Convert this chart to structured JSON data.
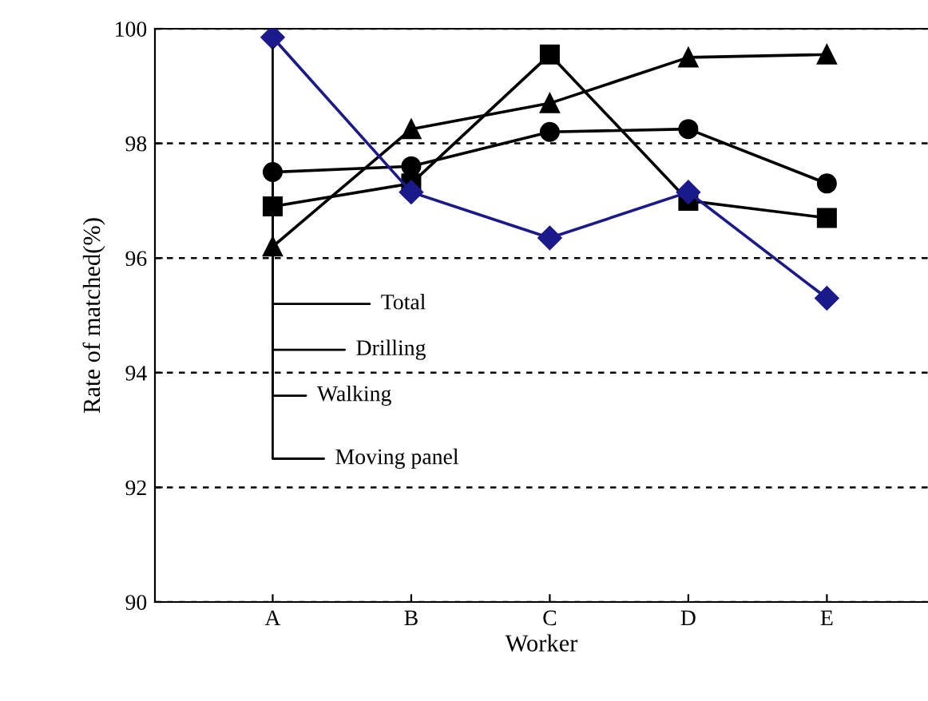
{
  "chart_data": {
    "type": "line",
    "xlabel": "Worker",
    "ylabel": "Rate of matched(%)",
    "categories": [
      "A",
      "B",
      "C",
      "D",
      "E"
    ],
    "series": [
      {
        "name": "Total",
        "color": "#000000",
        "marker": "circle",
        "values": [
          97.5,
          97.6,
          98.2,
          98.25,
          97.3
        ]
      },
      {
        "name": "Drilling",
        "color": "#000000",
        "marker": "square",
        "values": [
          96.9,
          97.3,
          99.55,
          97.0,
          96.7
        ]
      },
      {
        "name": "Walking",
        "color": "#000000",
        "marker": "triangle",
        "values": [
          96.2,
          98.25,
          98.7,
          99.5,
          99.55
        ]
      },
      {
        "name": "Moving panel",
        "color": "#1a1a8c",
        "marker": "diamond",
        "values": [
          99.85,
          97.15,
          96.35,
          97.15,
          95.3
        ]
      }
    ],
    "ylim": [
      90,
      100
    ],
    "yticks": [
      90,
      92,
      94,
      96,
      98,
      100
    ],
    "grid": "y",
    "line_style": "solid",
    "legend": false
  }
}
